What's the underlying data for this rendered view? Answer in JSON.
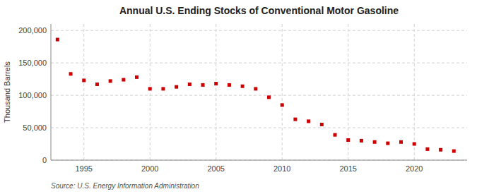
{
  "chart_data": {
    "type": "scatter",
    "title": "Annual U.S. Ending Stocks of Conventional Motor Gasoline",
    "y_label": "Thousand Barrels",
    "source": "Source: U.S. Energy Information Administration",
    "x": [
      1993,
      1994,
      1995,
      1996,
      1997,
      1998,
      1999,
      2000,
      2001,
      2002,
      2003,
      2004,
      2005,
      2006,
      2007,
      2008,
      2009,
      2010,
      2011,
      2012,
      2013,
      2014,
      2015,
      2016,
      2017,
      2018,
      2019,
      2020,
      2021,
      2022,
      2023
    ],
    "values": [
      186000,
      133000,
      123000,
      117000,
      122000,
      124000,
      128000,
      110000,
      110000,
      113000,
      117000,
      116000,
      118000,
      116000,
      114000,
      110000,
      97000,
      85000,
      63000,
      60000,
      55000,
      39000,
      31000,
      30000,
      28000,
      26000,
      28000,
      25000,
      17000,
      16000,
      14000
    ],
    "color": "#cc0000",
    "marker": "square",
    "xlim": [
      1992.5,
      2024
    ],
    "ylim": [
      0,
      210000
    ],
    "xticks": [
      1995,
      2000,
      2005,
      2010,
      2015,
      2020
    ],
    "yticks": [
      0,
      {
        "value": 50000,
        "label": "50,000"
      },
      {
        "value": 100000,
        "label": "100,000"
      },
      {
        "value": 150000,
        "label": "150,000"
      },
      {
        "value": 200000,
        "label": "200,000"
      }
    ],
    "grid": true
  }
}
